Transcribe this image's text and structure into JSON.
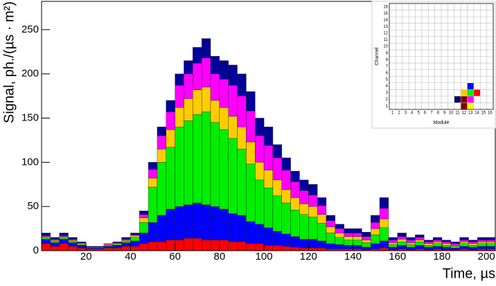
{
  "chart_data": [
    {
      "type": "stacked-histogram",
      "x_label": "Time, µs",
      "y_label": "Signal, ph./(µs · m²)",
      "bins": [
        0,
        4,
        8,
        12,
        16,
        20,
        24,
        28,
        32,
        36,
        40,
        44,
        48,
        52,
        56,
        60,
        64,
        68,
        72,
        76,
        80,
        84,
        88,
        92,
        96,
        100,
        104,
        108,
        112,
        116,
        120,
        124,
        128,
        132,
        136,
        140,
        144,
        148,
        152,
        156,
        160,
        164,
        168,
        172,
        176,
        180,
        184,
        188,
        192,
        196,
        200,
        204
      ],
      "xlim": [
        0,
        204
      ],
      "xticks": [
        20,
        40,
        60,
        80,
        100,
        120,
        140,
        160,
        180,
        200
      ],
      "ylim": [
        0,
        282
      ],
      "yticks": [
        0,
        50,
        100,
        150,
        200,
        250
      ],
      "series": [
        {
          "color": "#ff0000",
          "values": [
            8,
            5,
            8,
            5,
            3,
            2,
            2,
            3,
            3,
            5,
            5,
            8,
            10,
            10,
            12,
            12,
            14,
            14,
            12,
            12,
            12,
            10,
            10,
            8,
            8,
            6,
            6,
            5,
            4,
            3,
            3,
            3,
            2,
            2,
            2,
            2,
            1,
            2,
            3,
            1,
            2,
            1,
            2,
            1,
            2,
            1,
            1,
            2,
            1,
            2,
            2
          ]
        },
        {
          "color": "#0000ff",
          "values": [
            5,
            4,
            5,
            4,
            3,
            1,
            1,
            2,
            3,
            4,
            6,
            12,
            22,
            30,
            35,
            38,
            38,
            40,
            40,
            38,
            35,
            32,
            30,
            25,
            22,
            20,
            16,
            14,
            12,
            10,
            10,
            8,
            6,
            5,
            4,
            4,
            3,
            6,
            8,
            3,
            4,
            3,
            4,
            3,
            3,
            3,
            2,
            3,
            3,
            3,
            3
          ]
        },
        {
          "color": "#00ee00",
          "values": [
            2,
            2,
            2,
            2,
            1,
            0,
            0,
            1,
            1,
            2,
            4,
            12,
            40,
            60,
            70,
            90,
            95,
            100,
            105,
            95,
            90,
            85,
            75,
            65,
            50,
            45,
            40,
            35,
            30,
            28,
            25,
            20,
            12,
            8,
            6,
            6,
            5,
            10,
            15,
            3,
            4,
            3,
            4,
            2,
            3,
            2,
            2,
            3,
            2,
            3,
            3
          ]
        },
        {
          "color": "#ffcc00",
          "values": [
            1,
            1,
            1,
            1,
            1,
            0,
            0,
            1,
            1,
            1,
            2,
            5,
            10,
            15,
            20,
            22,
            25,
            28,
            28,
            25,
            25,
            25,
            25,
            25,
            20,
            20,
            18,
            15,
            14,
            12,
            12,
            10,
            7,
            5,
            4,
            4,
            3,
            7,
            10,
            2,
            3,
            2,
            2,
            2,
            2,
            2,
            1,
            2,
            2,
            2,
            2
          ]
        },
        {
          "color": "#ff00ff",
          "values": [
            1,
            1,
            1,
            1,
            1,
            1,
            1,
            1,
            1,
            1,
            1,
            4,
            10,
            15,
            20,
            25,
            28,
            30,
            33,
            30,
            32,
            35,
            35,
            35,
            30,
            28,
            25,
            22,
            18,
            15,
            13,
            10,
            7,
            5,
            4,
            4,
            4,
            7,
            12,
            3,
            3,
            3,
            3,
            2,
            2,
            2,
            2,
            2,
            2,
            2,
            2
          ]
        },
        {
          "color": "#000099",
          "values": [
            3,
            2,
            3,
            2,
            1,
            1,
            1,
            0,
            1,
            2,
            2,
            4,
            8,
            10,
            13,
            13,
            15,
            18,
            22,
            20,
            21,
            23,
            25,
            22,
            20,
            21,
            15,
            14,
            12,
            12,
            12,
            9,
            6,
            5,
            5,
            5,
            5,
            8,
            12,
            3,
            4,
            3,
            3,
            2,
            3,
            2,
            2,
            3,
            2,
            3,
            3
          ]
        }
      ]
    },
    {
      "type": "module-map",
      "x_label": "Module",
      "y_label": "Channel",
      "xticks": [
        1,
        2,
        3,
        4,
        5,
        6,
        7,
        8,
        9,
        10,
        11,
        12,
        13,
        14,
        15,
        16
      ],
      "yticks": [
        1,
        2,
        3,
        4,
        5,
        6,
        7,
        8,
        9,
        10,
        11,
        12,
        13,
        14,
        15,
        16
      ],
      "cells": [
        {
          "module": 11,
          "channel": 2,
          "color": "#000066"
        },
        {
          "module": 12,
          "channel": 1,
          "color": "#800000"
        },
        {
          "module": 13,
          "channel": 1,
          "color": "#ffff00"
        },
        {
          "module": 12,
          "channel": 2,
          "color": "#800000"
        },
        {
          "module": 13,
          "channel": 2,
          "color": "#ff00ff"
        },
        {
          "module": 12,
          "channel": 3,
          "color": "#ffcc00"
        },
        {
          "module": 13,
          "channel": 3,
          "color": "#00ee00"
        },
        {
          "module": 14,
          "channel": 3,
          "color": "#ff0000"
        },
        {
          "module": 13,
          "channel": 4,
          "color": "#0000ff"
        }
      ]
    }
  ]
}
